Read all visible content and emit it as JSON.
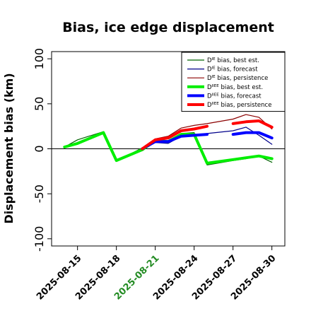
{
  "chart_data": {
    "type": "line",
    "title": "Bias, ice edge displacement",
    "xlabel": "",
    "ylabel": "Displacement bias (km)",
    "x_range": [
      "2025-08-13",
      "2025-08-31"
    ],
    "ylim": [
      -108,
      108
    ],
    "y_ticks": [
      -100,
      -50,
      0,
      50,
      100
    ],
    "x_ticks": [
      "2025-08-15",
      "2025-08-18",
      "2025-08-21",
      "2025-08-24",
      "2025-08-27",
      "2025-08-30"
    ],
    "highlight_tick": "2025-08-21",
    "highlight_color": "#228B22",
    "zero_line": true,
    "legend_position": "top-right",
    "series": [
      {
        "name": "D^IE bias, best est.",
        "color": "#006400",
        "width": 1.2,
        "segments": [
          [
            [
              "2025-08-14",
              2
            ],
            [
              "2025-08-15",
              10
            ],
            [
              "2025-08-17",
              19
            ],
            [
              "2025-08-18",
              -14
            ],
            [
              "2025-08-20",
              1
            ],
            [
              "2025-08-21",
              8
            ],
            [
              "2025-08-22",
              7
            ],
            [
              "2025-08-23",
              17
            ],
            [
              "2025-08-24",
              18
            ],
            [
              "2025-08-25",
              -18
            ],
            [
              "2025-08-27",
              -13
            ],
            [
              "2025-08-28",
              -11
            ],
            [
              "2025-08-29",
              -8
            ],
            [
              "2025-08-30",
              -15
            ]
          ]
        ]
      },
      {
        "name": "D^IE bias, forecast",
        "color": "#00008B",
        "width": 1.2,
        "segments": [
          [
            [
              "2025-08-20",
              0
            ],
            [
              "2025-08-21",
              7
            ],
            [
              "2025-08-22",
              6
            ],
            [
              "2025-08-23",
              14
            ],
            [
              "2025-08-24",
              15
            ],
            [
              "2025-08-25",
              17
            ],
            [
              "2025-08-27",
              20
            ],
            [
              "2025-08-28",
              24
            ],
            [
              "2025-08-29",
              15
            ],
            [
              "2025-08-30",
              5
            ]
          ]
        ]
      },
      {
        "name": "D^IE bias, persistence",
        "color": "#8B0000",
        "width": 1.2,
        "segments": [
          [
            [
              "2025-08-20",
              0
            ],
            [
              "2025-08-21",
              11
            ],
            [
              "2025-08-22",
              14
            ],
            [
              "2025-08-23",
              23
            ],
            [
              "2025-08-24",
              26
            ],
            [
              "2025-08-25",
              28
            ],
            [
              "2025-08-27",
              33
            ],
            [
              "2025-08-28",
              38
            ],
            [
              "2025-08-29",
              35
            ],
            [
              "2025-08-30",
              22
            ]
          ]
        ]
      },
      {
        "name": "D^IIEE bias, best est.",
        "color": "#00EE00",
        "width": 4,
        "segments": [
          [
            [
              "2025-08-14",
              2
            ],
            [
              "2025-08-15",
              6
            ],
            [
              "2025-08-17",
              18
            ],
            [
              "2025-08-18",
              -13
            ],
            [
              "2025-08-20",
              -1
            ],
            [
              "2025-08-21",
              9
            ],
            [
              "2025-08-22",
              8
            ],
            [
              "2025-08-23",
              16
            ],
            [
              "2025-08-24",
              16
            ],
            [
              "2025-08-25",
              -16
            ],
            [
              "2025-08-27",
              -12
            ],
            [
              "2025-08-28",
              -10
            ],
            [
              "2025-08-29",
              -8
            ],
            [
              "2025-08-30",
              -11
            ]
          ]
        ]
      },
      {
        "name": "D^IIEE bias, forecast",
        "color": "#0000FF",
        "width": 4,
        "segments": [
          [
            [
              "2025-08-20",
              0
            ],
            [
              "2025-08-21",
              8
            ],
            [
              "2025-08-22",
              8
            ],
            [
              "2025-08-23",
              14
            ],
            [
              "2025-08-24",
              15
            ],
            [
              "2025-08-25",
              16
            ]
          ],
          [
            [
              "2025-08-27",
              16
            ],
            [
              "2025-08-28",
              18
            ],
            [
              "2025-08-29",
              18
            ],
            [
              "2025-08-30",
              12
            ]
          ]
        ]
      },
      {
        "name": "D^IIEE bias, persistence",
        "color": "#FF0000",
        "width": 4,
        "segments": [
          [
            [
              "2025-08-20",
              0
            ],
            [
              "2025-08-21",
              10
            ],
            [
              "2025-08-22",
              12
            ],
            [
              "2025-08-23",
              20
            ],
            [
              "2025-08-24",
              22
            ],
            [
              "2025-08-25",
              25
            ]
          ],
          [
            [
              "2025-08-27",
              28
            ],
            [
              "2025-08-28",
              30
            ],
            [
              "2025-08-29",
              31
            ],
            [
              "2025-08-30",
              24
            ]
          ]
        ]
      }
    ]
  }
}
